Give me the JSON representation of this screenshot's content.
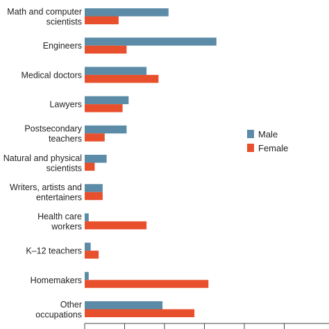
{
  "chart_data": {
    "type": "bar",
    "orientation": "horizontal",
    "categories": [
      [
        "Math and computer",
        "scientists"
      ],
      [
        "Engineers"
      ],
      [
        "Medical doctors"
      ],
      [
        "Lawyers"
      ],
      [
        "Postsecondary",
        "teachers"
      ],
      [
        "Natural and physical",
        "scientists"
      ],
      [
        "Writers, artists and",
        "entertainers"
      ],
      [
        "Health care",
        "workers"
      ],
      [
        "K–12 teachers"
      ],
      [
        "Homemakers"
      ],
      [
        "Other",
        "occupations"
      ]
    ],
    "series": [
      {
        "name": "Male",
        "color": "#5b8ba6",
        "values": [
          21,
          33,
          15.5,
          11,
          10.5,
          5.5,
          4.5,
          1,
          1.5,
          1,
          19.5
        ]
      },
      {
        "name": "Female",
        "color": "#e8502d",
        "values": [
          8.5,
          10.5,
          18.5,
          9.5,
          5,
          2.5,
          4.5,
          15.5,
          3.5,
          31,
          27.5
        ]
      }
    ],
    "xlim": [
      0,
      50
    ],
    "legend_position": "right",
    "grid": false
  }
}
